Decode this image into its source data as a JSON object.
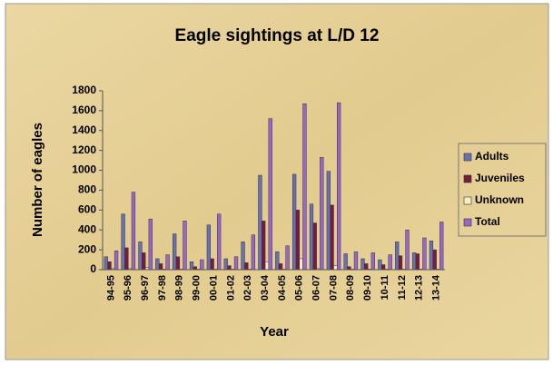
{
  "chart_data": {
    "type": "bar",
    "title": "Eagle sightings at L/D 12",
    "x_label": "Year",
    "y_label": "Number of eagles",
    "categories": [
      "94-95",
      "95-96",
      "96-97",
      "97-98",
      "98-99",
      "99-00",
      "00-01",
      "01-02",
      "02-03",
      "03-04",
      "04-05",
      "05-06",
      "06-07",
      "07-08",
      "08-09",
      "09-10",
      "10-11",
      "11-12",
      "12-13",
      "13-14"
    ],
    "series": [
      {
        "name": "Adults",
        "color": "#6a70b4",
        "values": [
          130,
          560,
          280,
          110,
          360,
          80,
          450,
          110,
          280,
          950,
          180,
          960,
          660,
          990,
          160,
          110,
          100,
          280,
          170,
          290
        ]
      },
      {
        "name": "Juveniles",
        "color": "#7a1a3c",
        "values": [
          80,
          220,
          170,
          60,
          130,
          30,
          110,
          40,
          70,
          490,
          60,
          600,
          470,
          650,
          30,
          60,
          50,
          140,
          160,
          200
        ]
      },
      {
        "name": "Unknown",
        "color": "#f2f0c4",
        "values": [
          10,
          10,
          20,
          5,
          5,
          5,
          5,
          5,
          5,
          80,
          5,
          110,
          10,
          40,
          5,
          5,
          5,
          5,
          5,
          5
        ]
      },
      {
        "name": "Total",
        "color": "#9a66cc",
        "values": [
          190,
          780,
          510,
          150,
          490,
          100,
          560,
          130,
          350,
          1520,
          240,
          1670,
          1130,
          1680,
          180,
          170,
          150,
          400,
          320,
          480
        ]
      }
    ],
    "ylim": [
      0,
      1800
    ],
    "yticks": [
      0,
      200,
      400,
      600,
      800,
      1000,
      1200,
      1400,
      1600,
      1800
    ],
    "legend": "right"
  }
}
